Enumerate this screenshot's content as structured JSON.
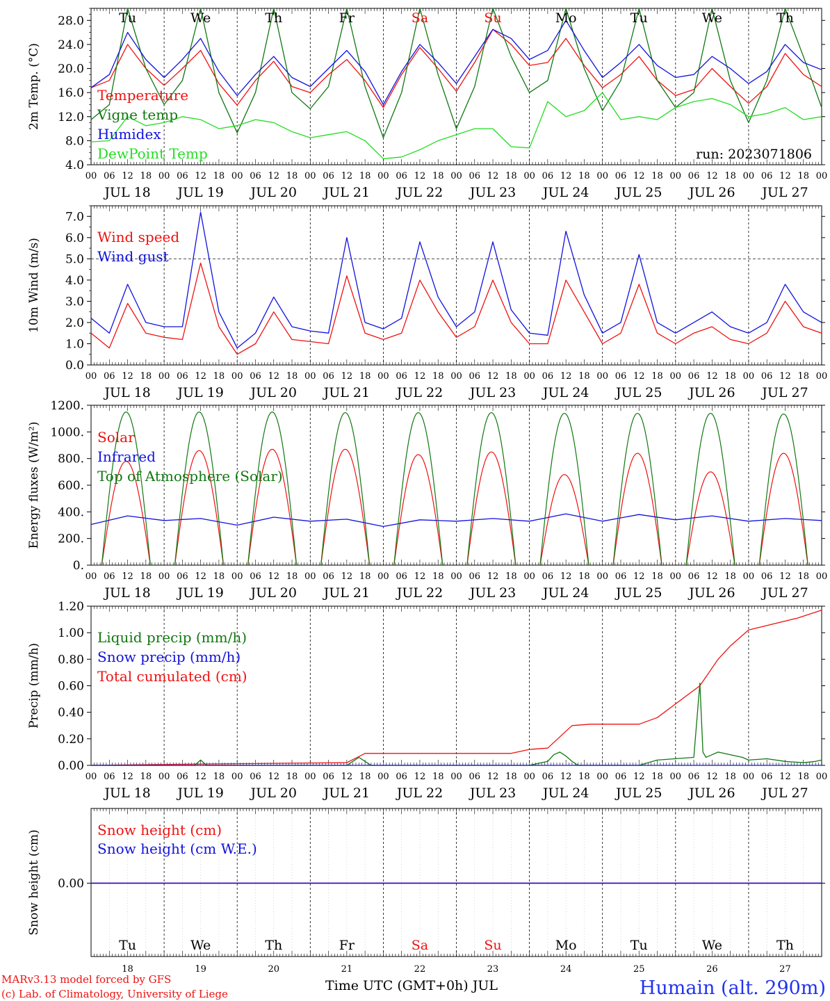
{
  "chart_data": [
    {
      "type": "line",
      "ylabel": "2m Temp. (°C)",
      "ylim": [
        4.0,
        30.0
      ],
      "yticks": [
        "4.0",
        "8.0",
        "12.0",
        "16.0",
        "20.0",
        "24.0",
        "28.0"
      ],
      "ytick_values": [
        4,
        8,
        12,
        16,
        20,
        24,
        28
      ],
      "run_label": "run: 2023071806",
      "legend": [
        {
          "label": "Temperature",
          "color": "#ee1111"
        },
        {
          "label": "Vigne temp",
          "color": "#117711"
        },
        {
          "label": "Humidex",
          "color": "#1111dd"
        },
        {
          "label": "DewPoint Temp",
          "color": "#22dd22"
        }
      ],
      "series": [
        {
          "name": "Temperature",
          "color": "#ee1111",
          "x": [
            0,
            6,
            12,
            18,
            24,
            30,
            36,
            42,
            48,
            54,
            60,
            66,
            72,
            78,
            84,
            90,
            96,
            102,
            108,
            114,
            120,
            126,
            132,
            138,
            144,
            150,
            156,
            162,
            168,
            174,
            180,
            186,
            192,
            198,
            204,
            210,
            216,
            222,
            228,
            234,
            240
          ],
          "y": [
            16.8,
            18.0,
            24.0,
            20.0,
            17.2,
            20.0,
            23.0,
            17.5,
            13.9,
            18.0,
            21.2,
            17.0,
            16.0,
            19.0,
            21.5,
            18.0,
            13.5,
            19.0,
            23.5,
            20.0,
            16.2,
            21.0,
            26.5,
            24.0,
            20.5,
            21.0,
            25.0,
            20.5,
            16.8,
            19.0,
            22.0,
            18.0,
            15.5,
            16.5,
            20.0,
            17.0,
            14.2,
            17.0,
            22.5,
            19.0,
            17.0
          ]
        },
        {
          "name": "Vigne temp",
          "color": "#117711",
          "x": [
            0,
            6,
            12,
            18,
            24,
            30,
            36,
            42,
            48,
            54,
            60,
            66,
            72,
            78,
            84,
            90,
            96,
            102,
            108,
            114,
            120,
            126,
            132,
            138,
            144,
            150,
            156,
            162,
            168,
            174,
            180,
            186,
            192,
            198,
            204,
            210,
            216,
            222,
            228,
            234,
            240
          ],
          "y": [
            11.5,
            14.0,
            30.0,
            20.0,
            14.0,
            18.0,
            30.0,
            16.0,
            9.3,
            16.0,
            30.0,
            16.0,
            13.3,
            17.0,
            30.0,
            17.0,
            8.5,
            16.0,
            30.0,
            19.0,
            10.0,
            17.0,
            30.0,
            22.0,
            16.0,
            18.0,
            30.0,
            20.0,
            13.0,
            18.0,
            30.0,
            18.0,
            13.5,
            16.0,
            30.0,
            18.0,
            11.0,
            18.0,
            30.0,
            22.0,
            13.5
          ]
        },
        {
          "name": "Humidex",
          "color": "#1111dd",
          "x": [
            0,
            6,
            12,
            18,
            24,
            30,
            36,
            42,
            48,
            54,
            60,
            66,
            72,
            78,
            84,
            90,
            96,
            102,
            108,
            114,
            120,
            126,
            132,
            138,
            144,
            150,
            156,
            162,
            168,
            174,
            180,
            186,
            192,
            198,
            204,
            210,
            216,
            222,
            228,
            234,
            240
          ],
          "y": [
            16.8,
            19.0,
            26.0,
            21.5,
            18.5,
            21.5,
            25.0,
            19.5,
            15.5,
            19.0,
            22.0,
            18.5,
            17.0,
            20.0,
            23.0,
            19.5,
            14.0,
            19.5,
            24.0,
            21.0,
            17.5,
            22.0,
            26.5,
            25.0,
            21.5,
            23.0,
            28.0,
            23.0,
            18.5,
            21.0,
            24.0,
            20.5,
            18.5,
            19.0,
            22.0,
            20.0,
            17.5,
            19.5,
            24.0,
            21.0,
            19.8
          ]
        },
        {
          "name": "DewPoint Temp",
          "color": "#22dd22",
          "x": [
            0,
            6,
            12,
            18,
            24,
            30,
            36,
            42,
            48,
            54,
            60,
            66,
            72,
            78,
            84,
            90,
            96,
            102,
            108,
            114,
            120,
            126,
            132,
            138,
            144,
            150,
            156,
            162,
            168,
            174,
            180,
            186,
            192,
            198,
            204,
            210,
            216,
            222,
            228,
            234,
            240
          ],
          "y": [
            7.8,
            8.0,
            12.0,
            10.5,
            11.0,
            12.0,
            11.5,
            10.0,
            10.5,
            11.5,
            11.0,
            9.5,
            8.5,
            9.0,
            9.5,
            8.0,
            5.0,
            5.3,
            6.5,
            8.0,
            9.0,
            10.0,
            10.0,
            7.0,
            6.8,
            14.5,
            12.0,
            13.0,
            16.0,
            11.5,
            12.0,
            11.5,
            13.5,
            14.5,
            15.0,
            14.0,
            12.0,
            12.5,
            13.5,
            11.5,
            12.0
          ]
        }
      ]
    },
    {
      "type": "line",
      "ylabel": "10m Wind (m/s)",
      "ylim": [
        0.0,
        7.5
      ],
      "yticks": [
        "0.0",
        "1.0",
        "2.0",
        "3.0",
        "4.0",
        "5.0",
        "6.0",
        "7.0"
      ],
      "ytick_values": [
        0,
        1,
        2,
        3,
        4,
        5,
        6,
        7
      ],
      "ref_line": 5.0,
      "legend": [
        {
          "label": "Wind speed",
          "color": "#ee1111"
        },
        {
          "label": "Wind gust",
          "color": "#1111dd"
        }
      ],
      "series": [
        {
          "name": "Wind speed",
          "color": "#ee1111",
          "x": [
            0,
            6,
            12,
            18,
            24,
            30,
            36,
            42,
            48,
            54,
            60,
            66,
            72,
            78,
            84,
            90,
            96,
            102,
            108,
            114,
            120,
            126,
            132,
            138,
            144,
            150,
            156,
            162,
            168,
            174,
            180,
            186,
            192,
            198,
            204,
            210,
            216,
            222,
            228,
            234,
            240
          ],
          "y": [
            1.5,
            0.8,
            2.9,
            1.5,
            1.3,
            1.2,
            4.8,
            1.8,
            0.5,
            1.0,
            2.5,
            1.2,
            1.1,
            1.0,
            4.2,
            1.5,
            1.2,
            1.5,
            4.0,
            2.5,
            1.3,
            1.8,
            4.0,
            2.0,
            1.0,
            1.0,
            4.0,
            2.5,
            1.0,
            1.5,
            3.8,
            1.5,
            1.0,
            1.5,
            1.8,
            1.2,
            1.0,
            1.5,
            3.0,
            1.8,
            1.5
          ]
        },
        {
          "name": "Wind gust",
          "color": "#1111dd",
          "x": [
            0,
            6,
            12,
            18,
            24,
            30,
            36,
            42,
            48,
            54,
            60,
            66,
            72,
            78,
            84,
            90,
            96,
            102,
            108,
            114,
            120,
            126,
            132,
            138,
            144,
            150,
            156,
            162,
            168,
            174,
            180,
            186,
            192,
            198,
            204,
            210,
            216,
            222,
            228,
            234,
            240
          ],
          "y": [
            2.2,
            1.5,
            3.8,
            2.0,
            1.8,
            1.8,
            7.2,
            2.5,
            0.8,
            1.5,
            3.2,
            1.8,
            1.6,
            1.5,
            6.0,
            2.0,
            1.7,
            2.2,
            5.8,
            3.2,
            1.8,
            2.5,
            5.8,
            2.6,
            1.5,
            1.4,
            6.3,
            3.3,
            1.5,
            2.0,
            5.2,
            2.0,
            1.5,
            2.0,
            2.5,
            1.8,
            1.5,
            2.0,
            3.8,
            2.5,
            2.0
          ]
        }
      ]
    },
    {
      "type": "line",
      "ylabel": "Energy fluxes (W/m²)",
      "ylim": [
        0,
        1200
      ],
      "yticks": [
        "0.",
        "200.",
        "400.",
        "600.",
        "800.",
        "1000.",
        "1200."
      ],
      "ytick_values": [
        0,
        200,
        400,
        600,
        800,
        1000,
        1200
      ],
      "legend": [
        {
          "label": "Solar",
          "color": "#ee1111"
        },
        {
          "label": "Infrared",
          "color": "#1111dd"
        },
        {
          "label": "Top of Atmosphere (Solar)",
          "color": "#117711"
        }
      ],
      "series": [
        {
          "name": "Solar",
          "color": "#ee1111",
          "daily_peak": [
            780,
            860,
            870,
            870,
            830,
            850,
            680,
            840,
            700,
            840
          ]
        },
        {
          "name": "Infrared",
          "color": "#1111dd",
          "x": [
            0,
            12,
            24,
            36,
            48,
            60,
            72,
            84,
            96,
            108,
            120,
            132,
            144,
            156,
            168,
            180,
            192,
            204,
            216,
            228,
            240
          ],
          "y": [
            305,
            370,
            335,
            350,
            300,
            360,
            330,
            345,
            290,
            340,
            330,
            350,
            330,
            385,
            330,
            380,
            340,
            370,
            330,
            350,
            335
          ]
        },
        {
          "name": "Top of Atmosphere (Solar)",
          "color": "#117711",
          "daily_peak": [
            1150,
            1150,
            1150,
            1145,
            1145,
            1145,
            1140,
            1140,
            1140,
            1135
          ]
        }
      ]
    },
    {
      "type": "line",
      "ylabel": "Precip (mm/h)",
      "ylim": [
        0.0,
        1.2
      ],
      "yticks": [
        "0.00",
        "0.20",
        "0.40",
        "0.60",
        "0.80",
        "1.00",
        "1.20"
      ],
      "ytick_values": [
        0,
        0.2,
        0.4,
        0.6,
        0.8,
        1.0,
        1.2
      ],
      "legend": [
        {
          "label": "Liquid precip (mm/h)",
          "color": "#117711"
        },
        {
          "label": "Snow precip (mm/h)",
          "color": "#1111dd"
        },
        {
          "label": "Total cumulated (cm)",
          "color": "#ee1111"
        }
      ],
      "series": [
        {
          "name": "Total cumulated (cm)",
          "color": "#ee1111",
          "x": [
            0,
            36,
            84,
            90,
            138,
            144,
            150,
            158,
            164,
            180,
            186,
            200,
            206,
            210,
            216,
            232,
            240
          ],
          "y": [
            0,
            0.01,
            0.02,
            0.09,
            0.09,
            0.12,
            0.13,
            0.3,
            0.31,
            0.31,
            0.36,
            0.6,
            0.8,
            0.9,
            1.02,
            1.11,
            1.17
          ]
        },
        {
          "name": "Liquid precip (mm/h)",
          "color": "#117711",
          "x": [
            0,
            34,
            36,
            38,
            84,
            86,
            88,
            90,
            92,
            144,
            150,
            152,
            154,
            156,
            158,
            160,
            180,
            186,
            198,
            200,
            201,
            202,
            204,
            206,
            210,
            214,
            216,
            222,
            228,
            234,
            238,
            240
          ],
          "y": [
            0,
            0,
            0.04,
            0,
            0,
            0.03,
            0.06,
            0.03,
            0,
            0,
            0.03,
            0.08,
            0.1,
            0.07,
            0.03,
            0,
            0,
            0.04,
            0.06,
            0.62,
            0.1,
            0.06,
            0.08,
            0.1,
            0.08,
            0.06,
            0.04,
            0.05,
            0.03,
            0.02,
            0.03,
            0.04
          ]
        },
        {
          "name": "Snow precip (mm/h)",
          "color": "#1111dd",
          "x": [
            0,
            240
          ],
          "y": [
            0,
            0
          ]
        }
      ]
    },
    {
      "type": "line",
      "ylabel": "Snow height (cm)",
      "yticks": [
        "0.00"
      ],
      "ytick_values": [
        0
      ],
      "legend": [
        {
          "label": "Snow height (cm)",
          "color": "#ee1111"
        },
        {
          "label": "Snow height (cm W.E.)",
          "color": "#1111dd"
        }
      ],
      "series": [
        {
          "name": "Snow height (cm)",
          "color": "#ee1111",
          "x": [
            0,
            240
          ],
          "y": [
            0,
            0
          ]
        },
        {
          "name": "Snow height (cm W.E.)",
          "color": "#1111dd",
          "x": [
            0,
            240
          ],
          "y": [
            0,
            0
          ]
        }
      ]
    }
  ],
  "hour_ticks": [
    "00",
    "06",
    "12",
    "18"
  ],
  "last_hour_label": "00",
  "dates": [
    "JUL 18",
    "JUL 19",
    "JUL 20",
    "JUL 21",
    "JUL 22",
    "JUL 23",
    "JUL 24",
    "JUL 25",
    "JUL 26",
    "JUL 27"
  ],
  "days": [
    {
      "name": "Tu",
      "num": "18",
      "color": "#000000"
    },
    {
      "name": "We",
      "num": "19",
      "color": "#000000"
    },
    {
      "name": "Th",
      "num": "20",
      "color": "#000000"
    },
    {
      "name": "Fr",
      "num": "21",
      "color": "#000000"
    },
    {
      "name": "Sa",
      "num": "22",
      "color": "#ee1111"
    },
    {
      "name": "Su",
      "num": "23",
      "color": "#ee1111"
    },
    {
      "name": "Mo",
      "num": "24",
      "color": "#000000"
    },
    {
      "name": "Tu",
      "num": "25",
      "color": "#000000"
    },
    {
      "name": "We",
      "num": "26",
      "color": "#000000"
    },
    {
      "name": "Th",
      "num": "27",
      "color": "#000000"
    }
  ],
  "xlabel": "Time UTC (GMT+0h) JUL",
  "footer": {
    "model_line": "MARv3.13 model forced by GFS",
    "credit_line": "(c) Lab. of Climatology, University of Liege",
    "station": "Humain (alt. 290m)"
  }
}
